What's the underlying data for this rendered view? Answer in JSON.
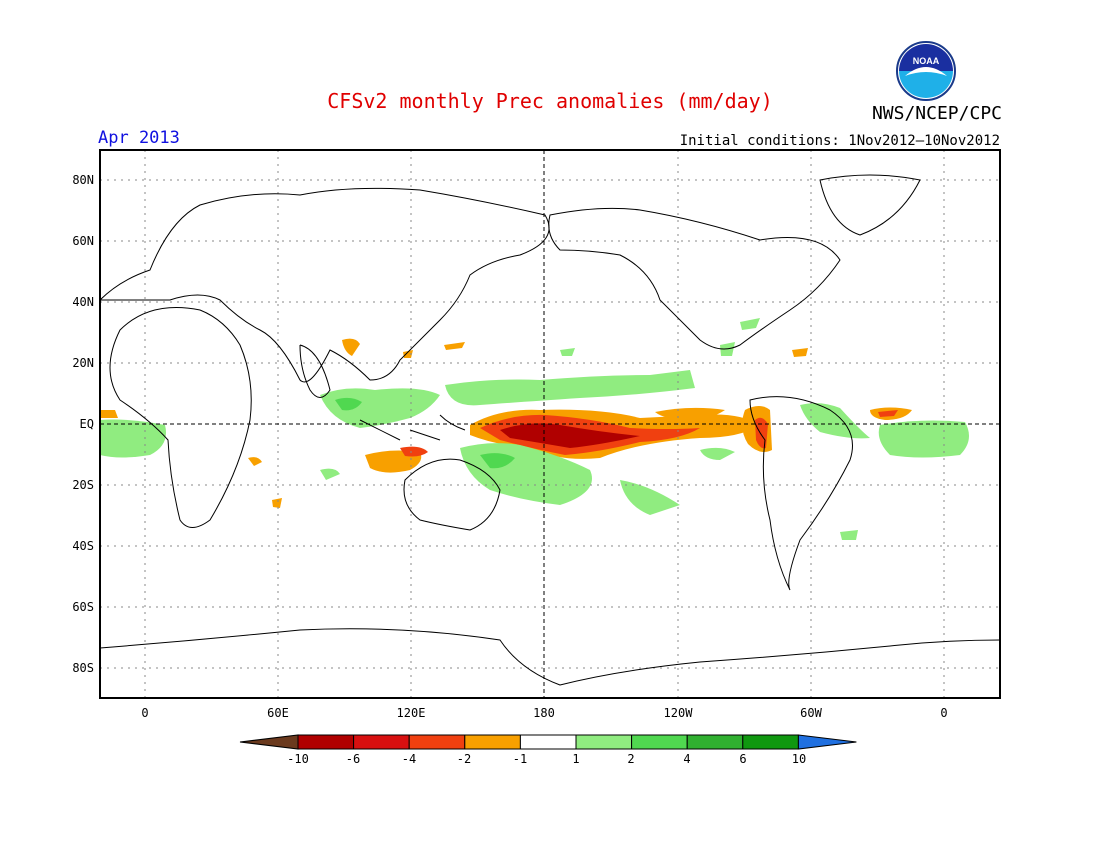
{
  "header": {
    "title": "CFSv2 monthly Prec anomalies (mm/day)",
    "agency": "NWS/NCEP/CPC",
    "month": "Apr 2013",
    "initial_conditions": "Initial conditions: 1Nov2012–10Nov2012",
    "logo_text": "NOAA"
  },
  "axes": {
    "lat_labels": [
      "80N",
      "60N",
      "40N",
      "20N",
      "EQ",
      "20S",
      "40S",
      "60S",
      "80S"
    ],
    "lon_labels": [
      "0",
      "60E",
      "120E",
      "180",
      "120W",
      "60W",
      "0"
    ]
  },
  "colorbar": {
    "labels": [
      "-10",
      "-6",
      "-4",
      "-2",
      "-1",
      "1",
      "2",
      "4",
      "6",
      "10"
    ],
    "colors": [
      "#6b3a1e",
      "#b00000",
      "#d81010",
      "#f04010",
      "#f8a000",
      "#ffffff",
      "#90ec80",
      "#50d850",
      "#30b030",
      "#109810",
      "#2070e0"
    ]
  },
  "map_features": {
    "land_outline_color": "#000000",
    "grid": "dotted",
    "anomaly_regions": [
      {
        "name": "central-pacific-dry",
        "value": -4
      },
      {
        "name": "maritime-continent-wet",
        "value": 2
      },
      {
        "name": "equatorial-atlantic-wet",
        "value": 2
      },
      {
        "name": "east-pacific-dry",
        "value": -2
      }
    ]
  }
}
